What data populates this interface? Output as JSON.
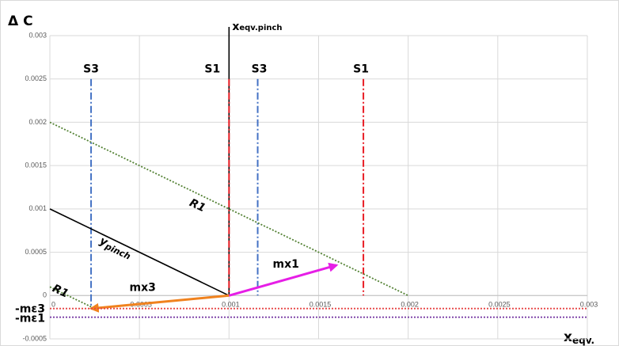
{
  "chart_data": {
    "type": "line",
    "y_label": "Δ C",
    "x_label": {
      "main": "x",
      "sub": "eqv."
    },
    "xlim": [
      0,
      0.003
    ],
    "ylim": [
      -0.0005,
      0.003
    ],
    "xticks": [
      0,
      0.0005,
      0.001,
      0.0015,
      0.002,
      0.0025,
      0.003
    ],
    "yticks": [
      -0.0005,
      0,
      0.0005,
      0.001,
      0.0015,
      0.002,
      0.0025,
      0.003
    ],
    "grid": true,
    "series": [
      {
        "name": "x",
        "subscript": "eqv.pinch",
        "color": "#000000",
        "style": "solid",
        "x": [
          0.001,
          0.001
        ],
        "values": [
          0,
          0.0031
        ]
      },
      {
        "name": "S3",
        "color": "#4472c4",
        "style": "dashdot",
        "x": [
          0.00023,
          0.00023
        ],
        "values": [
          0.0025,
          -0.00015
        ]
      },
      {
        "name": "S1",
        "color": "#e81c24",
        "style": "dashdot",
        "x": [
          0.001,
          0.001
        ],
        "values": [
          0.0025,
          0
        ]
      },
      {
        "name": "S3",
        "color": "#4472c4",
        "style": "dashdot",
        "x": [
          0.00116,
          0.00116
        ],
        "values": [
          0.0025,
          0
        ]
      },
      {
        "name": "S1",
        "color": "#e81c24",
        "style": "dashdot",
        "x": [
          0.00175,
          0.00175
        ],
        "values": [
          0.0025,
          0
        ]
      },
      {
        "name": "R1",
        "color": "#548235",
        "style": "dotted",
        "x": [
          0,
          0.002
        ],
        "values": [
          0.002,
          0
        ]
      },
      {
        "name": "R1",
        "color": "#548235",
        "style": "dotted",
        "x": [
          0,
          0.00025
        ],
        "values": [
          0.0001,
          -0.00015
        ]
      },
      {
        "name": "y",
        "subscript": "pinch",
        "color": "#000000",
        "style": "solid",
        "x": [
          0,
          0.001
        ],
        "values": [
          0.001,
          0
        ]
      },
      {
        "name": "mx1",
        "color": "#e61ee6",
        "style": "arrow",
        "x": [
          0.001,
          0.0016
        ],
        "values": [
          0,
          0.00035
        ]
      },
      {
        "name": "mx3",
        "color": "#f0821e",
        "style": "arrow",
        "x": [
          0.001,
          0.00023
        ],
        "values": [
          0,
          -0.00015
        ]
      },
      {
        "name": "-mε3",
        "color": "#e84545",
        "style": "dotted",
        "x": [
          0,
          0.003
        ],
        "values": [
          -0.00015,
          -0.00015
        ]
      },
      {
        "name": "-mε1",
        "color": "#7030a0",
        "style": "dotted",
        "x": [
          0,
          0.003
        ],
        "values": [
          -0.00025,
          -0.00025
        ]
      }
    ]
  }
}
